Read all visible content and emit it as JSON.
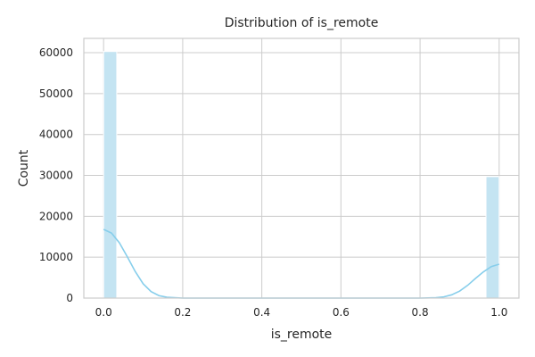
{
  "chart_data": {
    "type": "bar",
    "title": "Distribution of is_remote",
    "xlabel": "is_remote",
    "ylabel": "Count",
    "xlim": [
      -0.05,
      1.05
    ],
    "ylim": [
      0,
      63500
    ],
    "x_ticks": [
      0.0,
      0.2,
      0.4,
      0.6,
      0.8,
      1.0
    ],
    "x_tick_labels": [
      "0.0",
      "0.2",
      "0.4",
      "0.6",
      "0.8",
      "1.0"
    ],
    "y_ticks": [
      0,
      10000,
      20000,
      30000,
      40000,
      50000,
      60000
    ],
    "y_tick_labels": [
      "0",
      "10000",
      "20000",
      "30000",
      "40000",
      "50000",
      "60000"
    ],
    "grid": true,
    "bins": [
      {
        "x0": 0.0,
        "x1": 0.0333,
        "count": 60300
      },
      {
        "x0": 0.9667,
        "x1": 1.0,
        "count": 29700
      }
    ],
    "kde": {
      "x": [
        0.0,
        0.02,
        0.04,
        0.06,
        0.08,
        0.1,
        0.12,
        0.14,
        0.16,
        0.2,
        0.3,
        0.4,
        0.5,
        0.6,
        0.7,
        0.8,
        0.84,
        0.86,
        0.88,
        0.9,
        0.92,
        0.94,
        0.96,
        0.98,
        1.0
      ],
      "y": [
        16800,
        15900,
        13500,
        10100,
        6500,
        3500,
        1600,
        600,
        200,
        0,
        0,
        0,
        0,
        0,
        0,
        0,
        100,
        300,
        800,
        1700,
        3100,
        4800,
        6400,
        7700,
        8300
      ]
    },
    "colors": {
      "bar_fill": "#c4e4f2",
      "bar_edge": "#ffffff",
      "kde_line": "#87ceeb",
      "grid": "#cccccc",
      "spine": "#cccccc",
      "text": "#262626"
    }
  }
}
